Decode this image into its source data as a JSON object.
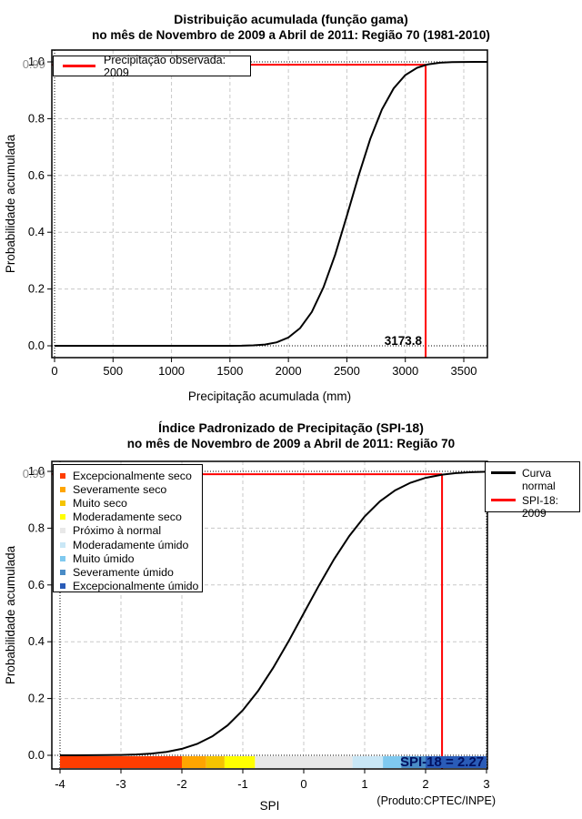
{
  "colors": {
    "red": "#FF0000",
    "curve": "#000000",
    "grid": "#C8C8C8",
    "label_gray": "#8C8C8C",
    "spi_text": "#001060"
  },
  "chart_data": [
    {
      "type": "line",
      "title_line1": "Distribuição acumulada (função gama)",
      "title_line2": "no mês de Novembro de 2009 a Abril de 2011: Região 70 (1981-2010)",
      "xlabel": "Precipitação acumulada (mm)",
      "ylabel": "Probabilidade acumulada",
      "xlim": [
        0,
        3700
      ],
      "ylim": [
        0,
        1
      ],
      "grid": true,
      "legend_position": "top-left",
      "xticks": [
        0,
        500,
        1000,
        1500,
        2000,
        2500,
        3000,
        3500
      ],
      "xtick_labels": [
        "0",
        "500",
        "1000",
        "1500",
        "2000",
        "2500",
        "3000",
        "3500"
      ],
      "yticks": [
        0,
        0.2,
        0.4,
        0.6,
        0.8,
        1.0
      ],
      "ytick_labels": [
        "0.0",
        "0.2",
        "0.4",
        "0.6",
        "0.8",
        "1.0"
      ],
      "y_gray_label": "0.99",
      "legend": {
        "label": "Precipitação observada: 2009",
        "color": "#FF0000"
      },
      "marker": {
        "x": 3173.8,
        "y": 0.99,
        "x_label": "3173.8"
      },
      "series": [
        {
          "name": "Distribuição gama acumulada",
          "points": [
            [
              0,
              0
            ],
            [
              300,
              0
            ],
            [
              600,
              0
            ],
            [
              900,
              0
            ],
            [
              1200,
              0
            ],
            [
              1400,
              0
            ],
            [
              1500,
              0.0001
            ],
            [
              1600,
              0.0004
            ],
            [
              1700,
              0.0015
            ],
            [
              1800,
              0.0046
            ],
            [
              1900,
              0.0122
            ],
            [
              2000,
              0.0292
            ],
            [
              2100,
              0.0623
            ],
            [
              2200,
              0.1193
            ],
            [
              2300,
              0.2057
            ],
            [
              2400,
              0.3212
            ],
            [
              2500,
              0.4574
            ],
            [
              2600,
              0.5987
            ],
            [
              2700,
              0.7281
            ],
            [
              2800,
              0.8325
            ],
            [
              2900,
              0.9068
            ],
            [
              3000,
              0.9534
            ],
            [
              3100,
              0.9791
            ],
            [
              3173.8,
              0.989
            ],
            [
              3200,
              0.9916
            ],
            [
              3300,
              0.997
            ],
            [
              3400,
              0.9991
            ],
            [
              3500,
              0.9997
            ],
            [
              3600,
              0.9999
            ],
            [
              3700,
              1
            ]
          ]
        }
      ]
    },
    {
      "type": "line",
      "title_line1": "Índice Padronizado de Precipitação (SPI-18)",
      "title_line2": "no mês de Novembro de 2009 a Abril de 2011: Região 70",
      "xlabel": "SPI",
      "ylabel": "Probabilidade acumulada",
      "xlim": [
        -4,
        3
      ],
      "ylim": [
        0,
        1
      ],
      "grid": true,
      "xticks": [
        -4,
        -3,
        -2,
        -1,
        0,
        1,
        2,
        3
      ],
      "xtick_labels": [
        "-4",
        "-3",
        "-2",
        "-1",
        "0",
        "1",
        "2",
        "3"
      ],
      "yticks": [
        0,
        0.2,
        0.4,
        0.6,
        0.8,
        1.0
      ],
      "ytick_labels": [
        "0.0",
        "0.2",
        "0.4",
        "0.6",
        "0.8",
        "1.0"
      ],
      "y_gray_label": "0.99",
      "marker": {
        "x": 2.27,
        "y": 0.99,
        "value_label": "SPI-18 = 2.27"
      },
      "footer": "(Produto:CPTEC/INPE)",
      "categories": [
        {
          "label": "Excepcionalmente seco",
          "color": "#FF3D00"
        },
        {
          "label": "Severamente seco",
          "color": "#FFA500"
        },
        {
          "label": "Muito seco",
          "color": "#F5C400"
        },
        {
          "label": "Moderadamente seco",
          "color": "#FFFF00"
        },
        {
          "label": "Próximo à normal",
          "color": "#E8E8E8"
        },
        {
          "label": "Moderadamente úmido",
          "color": "#C9E7F6"
        },
        {
          "label": "Muito úmido",
          "color": "#7FC9EF"
        },
        {
          "label": "Severamente úmido",
          "color": "#4A8CC7"
        },
        {
          "label": "Excepcionalmente úmido",
          "color": "#2A5CB8"
        }
      ],
      "bar_segments": [
        {
          "from": -4,
          "to": -2,
          "color": "#FF3D00"
        },
        {
          "from": -2,
          "to": -1.6,
          "color": "#FFA500"
        },
        {
          "from": -1.6,
          "to": -1.3,
          "color": "#F5C400"
        },
        {
          "from": -1.3,
          "to": -0.8,
          "color": "#FFFF00"
        },
        {
          "from": -0.8,
          "to": 0.8,
          "color": "#E8E8E8"
        },
        {
          "from": 0.8,
          "to": 1.3,
          "color": "#C9E7F6"
        },
        {
          "from": 1.3,
          "to": 1.6,
          "color": "#7FC9EF"
        },
        {
          "from": 1.6,
          "to": 2.0,
          "color": "#4A8CC7"
        },
        {
          "from": 2.0,
          "to": 3.0,
          "color": "#2A5CB8"
        }
      ],
      "right_legend": [
        {
          "label": "Curva\nnormal",
          "color": "#000000"
        },
        {
          "label": "SPI-18: 2009",
          "color": "#FF0000"
        }
      ],
      "series": [
        {
          "name": "Curva normal",
          "points": [
            [
              -4,
              0.0
            ],
            [
              -3.75,
              0.0001
            ],
            [
              -3.5,
              0.0002
            ],
            [
              -3.25,
              0.0006
            ],
            [
              -3,
              0.0013
            ],
            [
              -2.75,
              0.003
            ],
            [
              -2.5,
              0.0062
            ],
            [
              -2.25,
              0.0122
            ],
            [
              -2,
              0.0228
            ],
            [
              -1.75,
              0.0401
            ],
            [
              -1.5,
              0.0668
            ],
            [
              -1.25,
              0.1056
            ],
            [
              -1,
              0.1587
            ],
            [
              -0.75,
              0.2266
            ],
            [
              -0.5,
              0.3085
            ],
            [
              -0.25,
              0.4013
            ],
            [
              0,
              0.5
            ],
            [
              0.25,
              0.5987
            ],
            [
              0.5,
              0.6915
            ],
            [
              0.75,
              0.7734
            ],
            [
              1,
              0.8413
            ],
            [
              1.25,
              0.8944
            ],
            [
              1.5,
              0.9332
            ],
            [
              1.75,
              0.9599
            ],
            [
              2,
              0.9772
            ],
            [
              2.27,
              0.9884
            ],
            [
              2.5,
              0.9938
            ],
            [
              2.75,
              0.997
            ],
            [
              3,
              0.9987
            ]
          ]
        }
      ]
    }
  ]
}
